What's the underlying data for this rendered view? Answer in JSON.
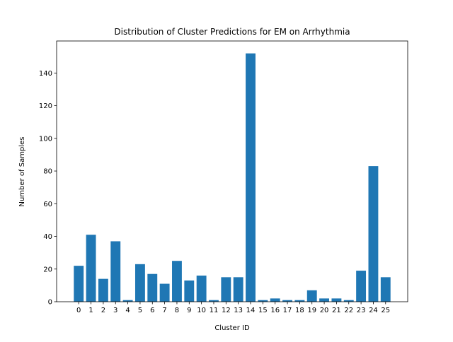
{
  "chart_data": {
    "type": "bar",
    "title": "Distribution of Cluster Predictions for EM on Arrhythmia",
    "xlabel": "Cluster ID",
    "ylabel": "Number of Samples",
    "categories": [
      "0",
      "1",
      "2",
      "3",
      "4",
      "5",
      "6",
      "7",
      "8",
      "9",
      "10",
      "11",
      "12",
      "13",
      "14",
      "15",
      "16",
      "17",
      "18",
      "19",
      "20",
      "21",
      "22",
      "23",
      "24",
      "25"
    ],
    "values": [
      22,
      41,
      14,
      37,
      1,
      23,
      17,
      11,
      25,
      13,
      16,
      1,
      15,
      15,
      152,
      1,
      2,
      1,
      1,
      7,
      2,
      2,
      1,
      19,
      83,
      15
    ],
    "ylim": [
      0,
      159.6
    ],
    "yticks": [
      0,
      20,
      40,
      60,
      80,
      100,
      120,
      140
    ],
    "grid": false,
    "bar_color": "#1f77b4"
  }
}
